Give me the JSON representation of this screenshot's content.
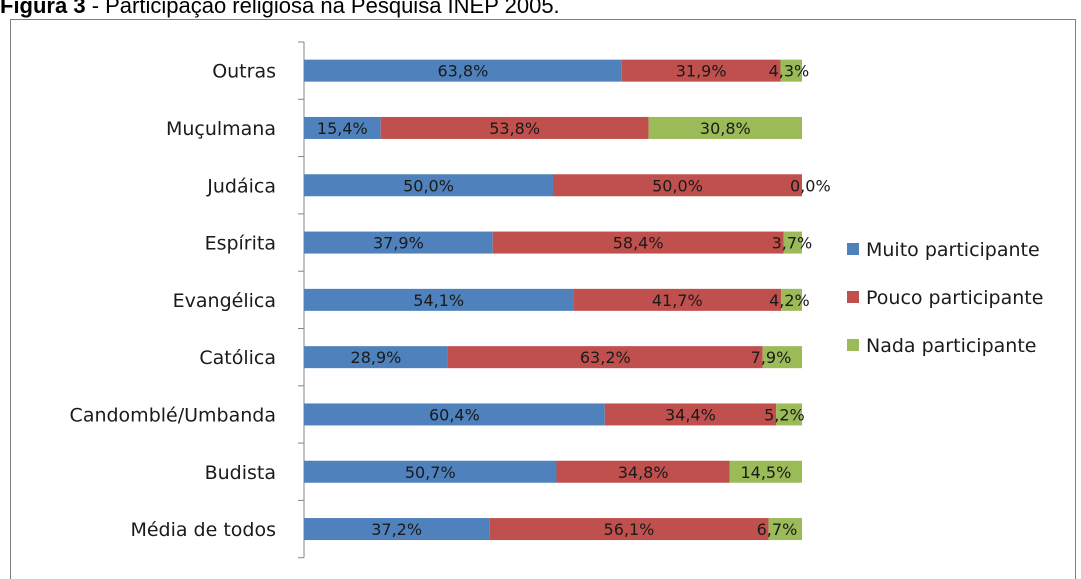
{
  "caption": {
    "prefix": "Figura 3",
    "text": " - Participação religiosa na Pesquisa INEP 2005."
  },
  "colors": {
    "muito": "#4f81bd",
    "pouco": "#c0504d",
    "nada": "#9bbb59"
  },
  "chart_data": {
    "type": "bar",
    "orientation": "horizontal",
    "stacking": "percent",
    "title": "",
    "xlabel": "",
    "ylabel": "",
    "xlim": [
      0,
      100
    ],
    "legend": "right",
    "categories": [
      "Outras",
      "Muçulmana",
      "Judáica",
      "Espírita",
      "Evangélica",
      "Católica",
      "Candomblé/Umbanda",
      "Budista",
      "Média de todos"
    ],
    "series": [
      {
        "name": "Muito participante",
        "values": [
          63.8,
          15.4,
          50.0,
          37.9,
          54.1,
          28.9,
          60.4,
          50.7,
          37.2
        ],
        "labels": [
          "63,8%",
          "15,4%",
          "50,0%",
          "37,9%",
          "54,1%",
          "28,9%",
          "60,4%",
          "50,7%",
          "37,2%"
        ]
      },
      {
        "name": "Pouco participante",
        "values": [
          31.9,
          53.8,
          50.0,
          58.4,
          41.7,
          63.2,
          34.4,
          34.8,
          56.1
        ],
        "labels": [
          "31,9%",
          "53,8%",
          "50,0%",
          "58,4%",
          "41,7%",
          "63,2%",
          "34,4%",
          "34,8%",
          "56,1%"
        ]
      },
      {
        "name": "Nada participante",
        "values": [
          4.3,
          30.8,
          0.0,
          3.7,
          4.2,
          7.9,
          5.2,
          14.5,
          6.7
        ],
        "labels": [
          "4,3%",
          "30,8%",
          "0,0%",
          "3,7%",
          "4,2%",
          "7,9%",
          "5,2%",
          "14,5%",
          "6,7%"
        ]
      }
    ]
  }
}
